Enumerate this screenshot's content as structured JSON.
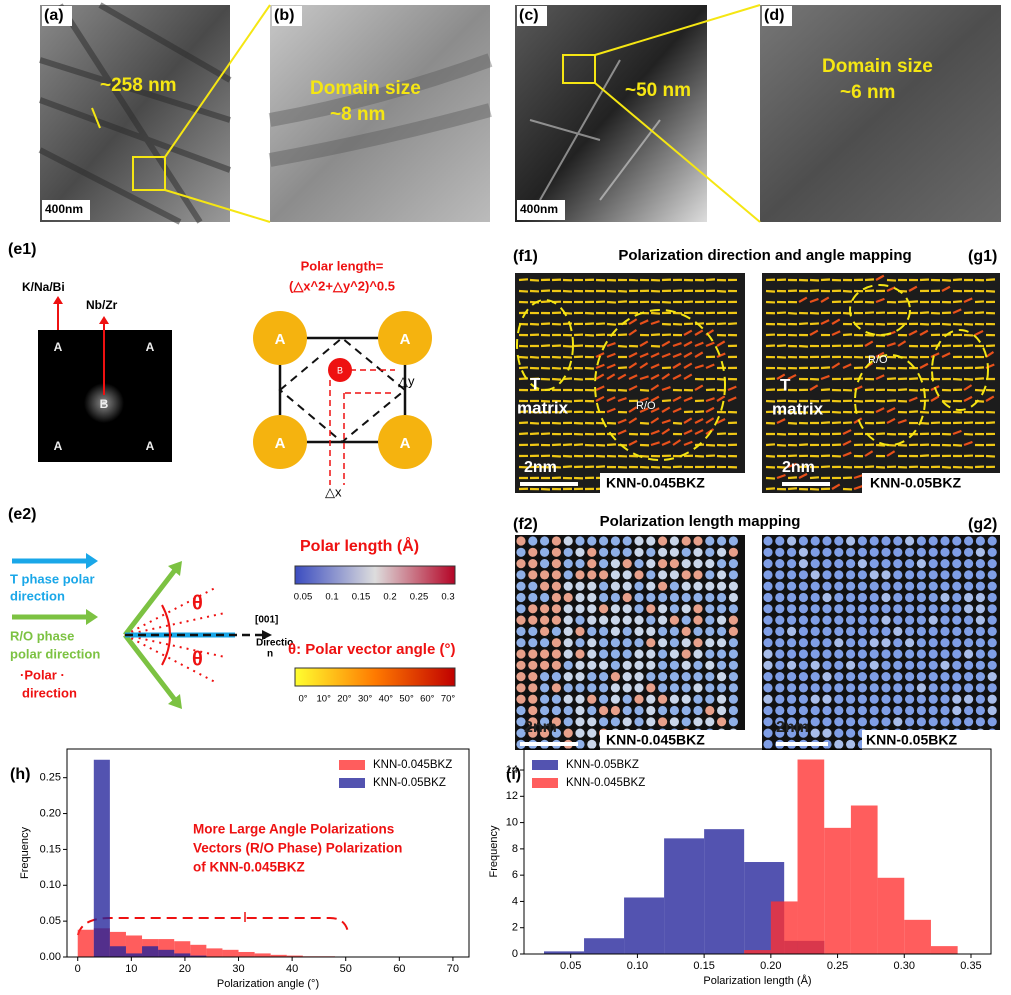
{
  "panels": {
    "a": {
      "label": "(a)",
      "size": "~258 nm",
      "scale": "400nm"
    },
    "b": {
      "label": "(b)",
      "title": "Domain size",
      "size": "~8 nm"
    },
    "c": {
      "label": "(c)",
      "size": "~50 nm",
      "scale": "400nm"
    },
    "d": {
      "label": "(d)",
      "title": "Domain size",
      "size": "~6 nm"
    },
    "e1": {
      "label": "(e1)",
      "site_a": "K/Na/Bi",
      "site_b": "Nb/Zr",
      "fft_atoms": [
        "A",
        "A",
        "B",
        "A",
        "A"
      ],
      "formula_title": "Polar length=",
      "formula": "(△x^2+△y^2)^0.5",
      "cell_atoms": [
        "A",
        "A",
        "A",
        "A"
      ],
      "b_atom": "B",
      "dy": "△y",
      "dx": "△x"
    },
    "e2": {
      "label": "(e2)",
      "t_phase": [
        "T phase polar",
        "direction"
      ],
      "ro_phase": [
        "R/O phase",
        "polar direction"
      ],
      "polar": [
        "·Polar ·",
        "direction"
      ],
      "theta": [
        "θ",
        "θ"
      ],
      "axis": [
        "[001]",
        "Directio",
        "n"
      ],
      "length_title": "Polar length (Å)",
      "length_ticks": [
        "0.05",
        "0.1",
        "0.15",
        "0.2",
        "0.25",
        "0.3"
      ],
      "angle_title": "θ: Polar vector angle (°)",
      "angle_ticks": [
        "0°",
        "10°",
        "20°",
        "30°",
        "40°",
        "50°",
        "60°",
        "70°"
      ]
    },
    "f1": {
      "label": "(f1)",
      "title": "Polarization direction and angle mapping",
      "matrix": [
        "T",
        "matrix"
      ],
      "region": "R/O",
      "scale": "2nm",
      "sample": "KNN-0.045BKZ"
    },
    "g1": {
      "label": "(g1)",
      "matrix": [
        "T",
        "matrix"
      ],
      "region": "R/O",
      "scale": "2nm",
      "sample": "KNN-0.05BKZ"
    },
    "f2": {
      "label": "(f2)",
      "title": "Polarization length mapping",
      "scale": "2nm",
      "sample": "KNN-0.045BKZ"
    },
    "g2": {
      "label": "(g2)",
      "scale": "2nm",
      "sample": "KNN-0.05BKZ"
    }
  },
  "chart_data": [
    {
      "type": "histogram",
      "label": "(h)",
      "x_label": "Polarization angle (°)",
      "y_label": "Frequency",
      "xlim": [
        -2,
        73
      ],
      "ylim": [
        0,
        0.29
      ],
      "xticks": [
        0,
        10,
        20,
        30,
        40,
        50,
        60,
        70
      ],
      "yticks": [
        {
          "value": 0,
          "label": "0.00"
        },
        {
          "value": 0.05,
          "label": "0.05"
        },
        {
          "value": 0.1,
          "label": "0.10"
        },
        {
          "value": 0.15,
          "label": "0.15"
        },
        {
          "value": 0.2,
          "label": "0.20"
        },
        {
          "value": 0.25,
          "label": "0.25"
        }
      ],
      "legend": "upper right",
      "annotation": [
        "More Large Angle Polarizations",
        "Vectors (R/O Phase) Polarization",
        "of KNN-0.045BKZ"
      ],
      "series": [
        {
          "name": "KNN-0.045BKZ",
          "color": "#ff3030",
          "bins": [
            0,
            3,
            6,
            9,
            12,
            15,
            18,
            21,
            24,
            27,
            30,
            33,
            36,
            39,
            42,
            45,
            48,
            51
          ],
          "values": [
            0.038,
            0.04,
            0.035,
            0.03,
            0.025,
            0.025,
            0.022,
            0.017,
            0.012,
            0.01,
            0.007,
            0.005,
            0.003,
            0.002,
            0.001,
            0.001,
            0.0005
          ]
        },
        {
          "name": "KNN-0.05BKZ",
          "color": "#22229a",
          "bins": [
            0,
            3,
            6,
            9,
            12,
            15,
            18,
            21,
            24
          ],
          "values": [
            0,
            0.275,
            0.015,
            0.005,
            0.015,
            0.01,
            0.005,
            0.002
          ]
        }
      ]
    },
    {
      "type": "histogram",
      "label": "(i)",
      "x_label": "Polarization length (Å)",
      "y_label": "Frequency",
      "xlim": [
        0.015,
        0.365
      ],
      "ylim": [
        0,
        15.6
      ],
      "xticks": [
        0.05,
        {
          "value": 0.1,
          "label": "0.10"
        },
        0.15,
        {
          "value": 0.2,
          "label": "0.20"
        },
        0.25,
        {
          "value": 0.3,
          "label": "0.30"
        },
        0.35
      ],
      "yticks": [
        0,
        2,
        4,
        6,
        8,
        10,
        12,
        14
      ],
      "legend": "upper left",
      "series": [
        {
          "name": "KNN-0.05BKZ",
          "color": "#22229a",
          "bins": [
            0.03,
            0.06,
            0.09,
            0.12,
            0.15,
            0.18,
            0.21,
            0.24
          ],
          "values": [
            0.2,
            1.2,
            4.3,
            8.8,
            9.5,
            7,
            1
          ]
        },
        {
          "name": "KNN-0.045BKZ",
          "color": "#ff3030",
          "bins": [
            0.18,
            0.2,
            0.22,
            0.24,
            0.26,
            0.28,
            0.3,
            0.32,
            0.34
          ],
          "values": [
            0.3,
            4,
            14.8,
            9.6,
            11.3,
            5.8,
            2.6,
            0.6
          ]
        }
      ]
    }
  ]
}
